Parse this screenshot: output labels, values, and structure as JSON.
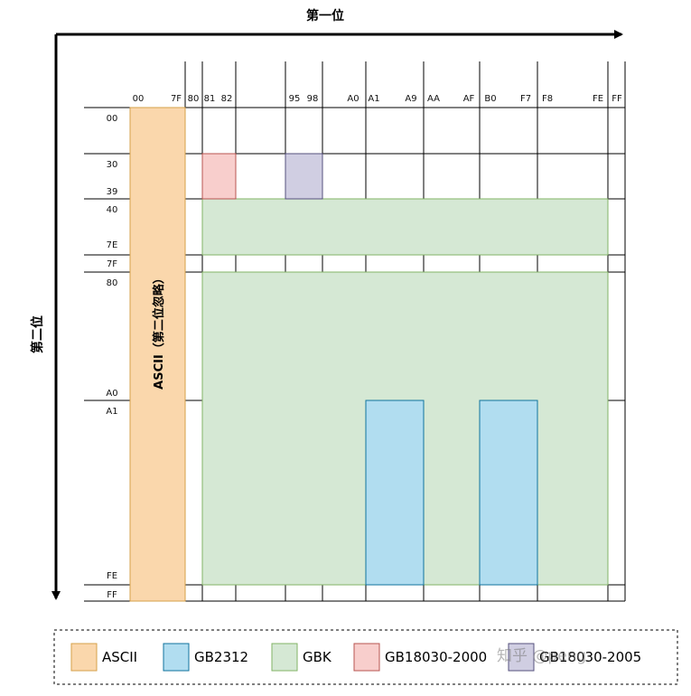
{
  "axes": {
    "top_title": "第一位",
    "left_title": "第二位"
  },
  "first_byte_ticks": [
    "00",
    "7F",
    "80",
    "81",
    "82",
    "95",
    "98",
    "A0",
    "A1",
    "A9",
    "AA",
    "AF",
    "B0",
    "F7",
    "F8",
    "FE",
    "FF"
  ],
  "second_byte_ticks": [
    "00",
    "30",
    "39",
    "40",
    "7E",
    "7F",
    "80",
    "A0",
    "A1",
    "FE",
    "FF"
  ],
  "regions": [
    {
      "name": "ASCII",
      "color": "#fad7ac",
      "stroke": "#d6a04a",
      "label": "ASCII（第二位忽略）"
    },
    {
      "name": "GB18030-2000",
      "color": "#f8cecc",
      "stroke": "#b85450"
    },
    {
      "name": "GB18030-2005",
      "color": "#d0cee2",
      "stroke": "#56517e"
    },
    {
      "name": "GBK",
      "color": "#d5e8d4",
      "stroke": "#82b366"
    },
    {
      "name": "GB2312",
      "color": "#b1ddf0",
      "stroke": "#10739e"
    }
  ],
  "legend": [
    {
      "label": "ASCII",
      "color": "#fad7ac",
      "stroke": "#d6a04a"
    },
    {
      "label": "GB2312",
      "color": "#b1ddf0",
      "stroke": "#10739e"
    },
    {
      "label": "GBK",
      "color": "#d5e8d4",
      "stroke": "#82b366"
    },
    {
      "label": "GB18030-2000",
      "color": "#f8cecc",
      "stroke": "#b85450"
    },
    {
      "label": "GB18030-2005",
      "color": "#d0cee2",
      "stroke": "#56517e"
    }
  ],
  "watermark": "知乎 @peng"
}
